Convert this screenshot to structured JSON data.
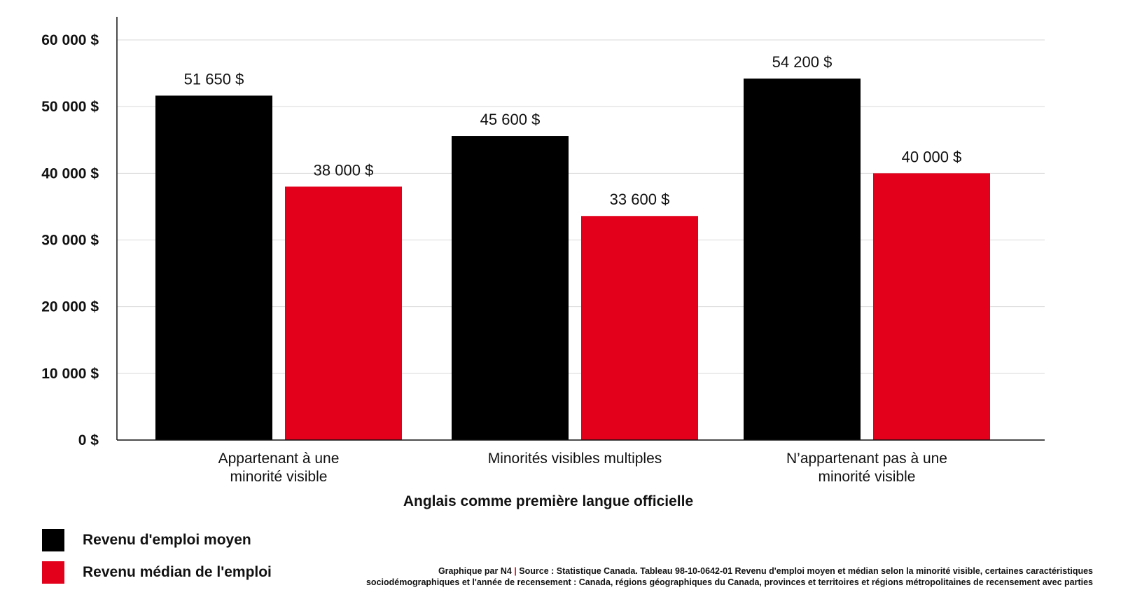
{
  "chart_data": {
    "type": "bar",
    "categories": [
      [
        "Appartenant à une",
        "minorité visible"
      ],
      [
        "Minorités visibles multiples"
      ],
      [
        "N’appartenant pas à une",
        "minorité visible"
      ]
    ],
    "series": [
      {
        "name": "Revenu d'emploi moyen",
        "color": "#000000",
        "values": [
          51650,
          45600,
          54200
        ],
        "labels": [
          "51 650 $",
          "45 600 $",
          "54 200 $"
        ]
      },
      {
        "name": "Revenu médian de l'emploi",
        "color": "#e2001a",
        "values": [
          38000,
          33600,
          40000
        ],
        "labels": [
          "38 000 $",
          "33 600 $",
          "40 000 $"
        ]
      }
    ],
    "xlabel": "Anglais comme première langue officielle",
    "ylabel": "",
    "ylim": [
      0,
      60000
    ],
    "yticks": [
      0,
      10000,
      20000,
      30000,
      40000,
      50000,
      60000
    ],
    "ytick_labels": [
      "0 $",
      "10 000 $",
      "20 000 $",
      "30 000 $",
      "40 000 $",
      "50 000 $",
      "60 000 $"
    ],
    "grid": true,
    "legend_position": "bottom-left"
  },
  "source": {
    "prefix": "Graphique par N4",
    "separator": "|",
    "line1": "Source : Statistique Canada. Tableau 98-10-0642-01 Revenu d'emploi moyen et médian selon la minorité visible, certaines caractéristiques",
    "line2": "sociodémographiques et l'année de recensement : Canada, régions géographiques du Canada, provinces et territoires et régions métropolitaines de recensement avec parties"
  }
}
